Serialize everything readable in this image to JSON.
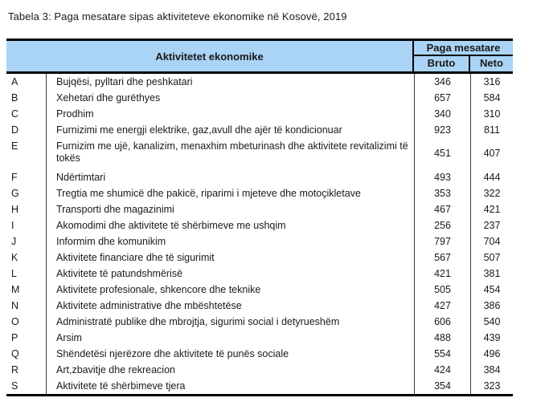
{
  "title": "Tabela 3: Paga mesatare sipas aktiviteteve ekonomike në Kosovë, 2019",
  "table": {
    "header_bg": "#A9D4F5",
    "col_activity": "Aktivitetet ekonomike",
    "col_group": "Paga mesatare",
    "col_bruto": "Bruto",
    "col_neto": "Neto",
    "rows": [
      {
        "code": "A",
        "activity": "Bujqësi, pylltari dhe peshkatari",
        "bruto": "346",
        "neto": "316"
      },
      {
        "code": "B",
        "activity": "Xehetari dhe gurëthyes",
        "bruto": "657",
        "neto": "584"
      },
      {
        "code": "C",
        "activity": "Prodhim",
        "bruto": "340",
        "neto": "310"
      },
      {
        "code": "D",
        "activity": "Furnizimi me energji elektrike, gaz,avull dhe ajër të kondicionuar",
        "bruto": "923",
        "neto": "811"
      },
      {
        "code": "E",
        "activity": "Furnizim me ujë, kanalizim, menaxhim mbeturinash dhe aktivitete revitalizimi të tokës",
        "bruto": "451",
        "neto": "407",
        "tall": true
      },
      {
        "code": "F",
        "activity": "Ndërtimtari",
        "bruto": "493",
        "neto": "444"
      },
      {
        "code": "G",
        "activity": "Tregtia me shumicë dhe pakicë, riparimi i mjeteve dhe motoçikletave",
        "bruto": "353",
        "neto": "322"
      },
      {
        "code": "H",
        "activity": "Transporti dhe magazinimi",
        "bruto": "467",
        "neto": "421"
      },
      {
        "code": "I",
        "activity": "Akomodimi dhe aktivitete të shërbimeve me ushqim",
        "bruto": "256",
        "neto": "237"
      },
      {
        "code": "J",
        "activity": "Informim dhe komunikim",
        "bruto": "797",
        "neto": "704"
      },
      {
        "code": "K",
        "activity": "Aktivitete financiare dhe të sigurimit",
        "bruto": "567",
        "neto": "507"
      },
      {
        "code": "L",
        "activity": "Aktivitete të patundshmërisë",
        "bruto": "421",
        "neto": "381"
      },
      {
        "code": "M",
        "activity": "Aktivitete profesionale, shkencore dhe teknike",
        "bruto": "505",
        "neto": "454"
      },
      {
        "code": "N",
        "activity": "Aktivitete administrative dhe mbështetëse",
        "bruto": "427",
        "neto": "386"
      },
      {
        "code": "O",
        "activity": "Administratë publike dhe mbrojtja, sigurimi social i detyrueshëm",
        "bruto": "606",
        "neto": "540"
      },
      {
        "code": "P",
        "activity": "Arsim",
        "bruto": "488",
        "neto": "439"
      },
      {
        "code": "Q",
        "activity": "Shëndetësi njerëzore dhe aktivitete të punës sociale",
        "bruto": "554",
        "neto": "496"
      },
      {
        "code": "R",
        "activity": "Art,zbavitje dhe rekreacion",
        "bruto": "424",
        "neto": "384"
      },
      {
        "code": "S",
        "activity": "Aktivitete të shërbimeve tjera",
        "bruto": "354",
        "neto": "323"
      }
    ]
  }
}
